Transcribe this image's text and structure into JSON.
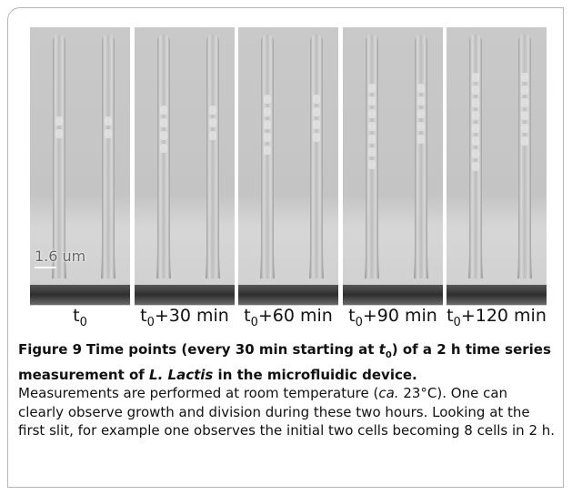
{
  "figure": {
    "scale_bar": "1.6 um",
    "panels": [
      {
        "base": "t",
        "sub": "0"
      },
      {
        "base": "t",
        "sub": "0",
        "rest": "+30 min"
      },
      {
        "base": "t",
        "sub": "0",
        "rest": "+60 min"
      },
      {
        "base": "t",
        "sub": "0",
        "rest": "+90 min"
      },
      {
        "base": "t",
        "sub": "0",
        "rest": "+120 min"
      }
    ]
  },
  "caption": {
    "label": "Figure 9",
    "title_1": "Time points (every 30 min starting at ",
    "title_t": "t",
    "title_sub": "0",
    "title_2": ") of a 2 h time series measurement of ",
    "title_species": "L. Lactis",
    "title_3": " in the microfluidic device.",
    "body_1": "Measurements are performed at room temperature (",
    "body_ca": "ca.",
    "body_2": " 23°C). One can clearly observe growth and division during these two hours. Looking at the first slit, for example one observes the initial two cells becoming 8 cells in 2 h."
  }
}
